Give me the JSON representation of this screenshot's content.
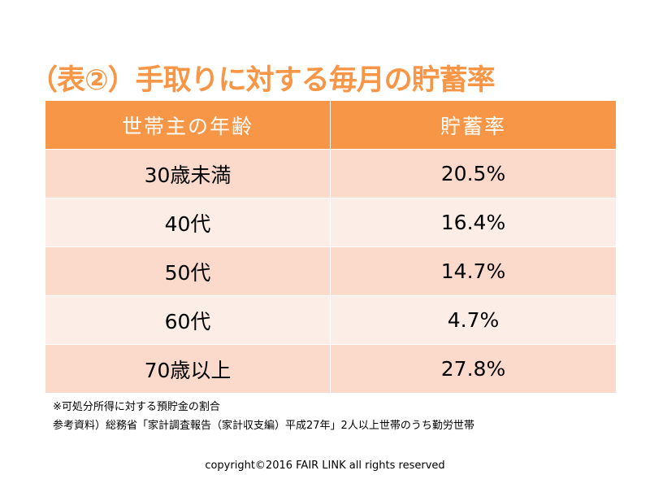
{
  "title": "（表②）手取りに対する毎月の貯蓄率",
  "table": {
    "headers": [
      "世帯主の年齢",
      "貯蓄率"
    ],
    "rows": [
      [
        "30歳未満",
        "20.5%"
      ],
      [
        "40代",
        "16.4%"
      ],
      [
        "50代",
        "14.7%"
      ],
      [
        "60代",
        "4.7%"
      ],
      [
        "70歳以上",
        "27.8%"
      ]
    ]
  },
  "notes": [
    "※可処分所得に対する預貯金の割合",
    "参考資料）総務省「家計調査報告（家計収支編）平成27年」2人以上世帯のうち勤労世帯"
  ],
  "copyright": "copyright©2016 FAIR LINK  all rights reserved",
  "colors": {
    "accent": "#F79646",
    "row_dark": "#FBD9CB",
    "row_light": "#FDEDE7"
  }
}
